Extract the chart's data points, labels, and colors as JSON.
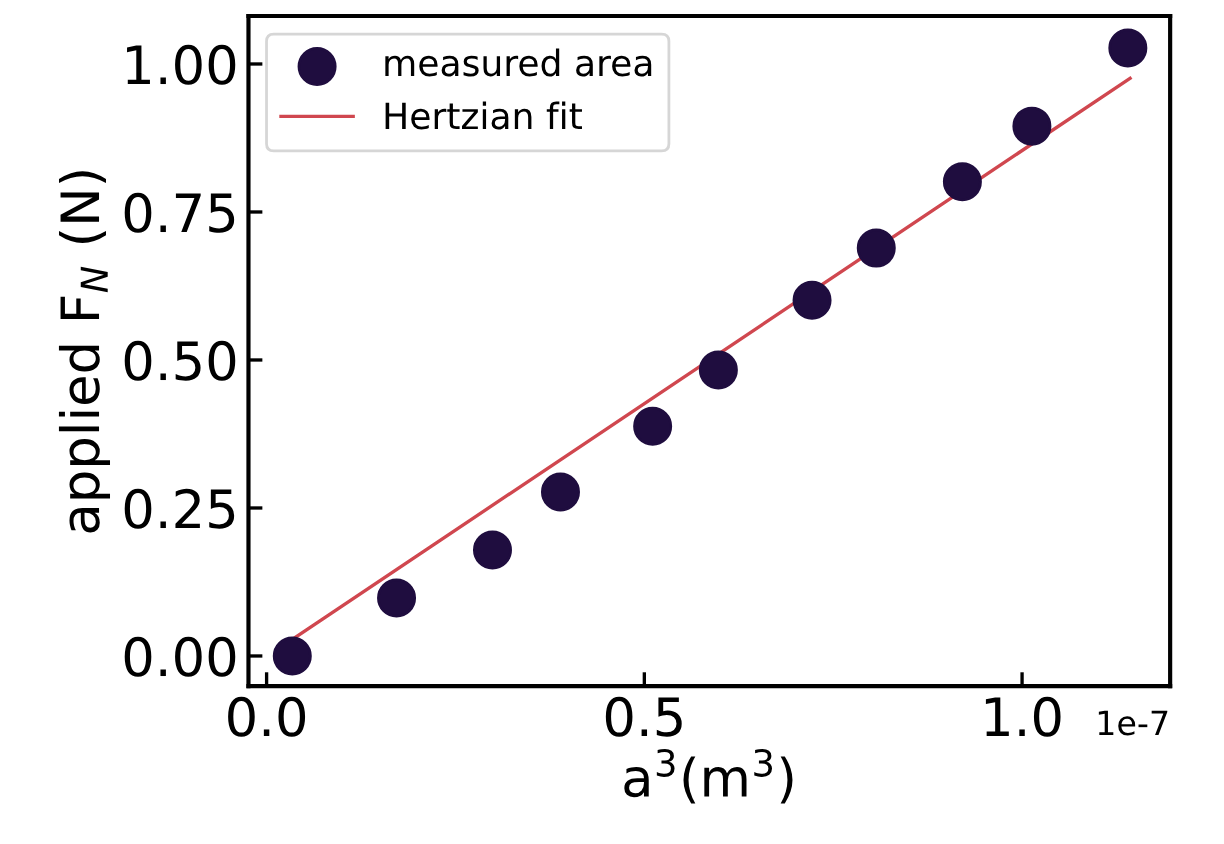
{
  "chart_data": {
    "type": "scatter",
    "xlabel": "a$^{3}$(m$^{3}$)",
    "ylabel": "applied F$_{N}$ (N)",
    "annotations": [
      "1e-7"
    ],
    "series": [
      {
        "name": "measured area",
        "color": "#1f0d3f",
        "marker": "circle",
        "x": [
          0.034,
          0.172,
          0.299,
          0.389,
          0.511,
          0.598,
          0.722,
          0.807,
          0.921,
          1.013,
          1.14
        ],
        "values": [
          0.0,
          0.098,
          0.179,
          0.277,
          0.388,
          0.483,
          0.601,
          0.689,
          0.801,
          0.895,
          1.027
        ]
      },
      {
        "name": "Hertzian fit",
        "type": "line",
        "color": "#d0474f",
        "x": [
          0.034,
          1.143
        ],
        "values": [
          0.028,
          0.976
        ]
      }
    ],
    "xlim": [
      -0.024,
      1.196
    ],
    "ylim": [
      -0.051,
      1.081
    ],
    "xticks": [
      {
        "value": 0.0,
        "label": "0.0"
      },
      {
        "value": 0.5,
        "label": "0.5"
      },
      {
        "value": 1.0,
        "label": "1.0"
      }
    ],
    "yticks": [
      {
        "value": 0.0,
        "label": "0.00"
      },
      {
        "value": 0.25,
        "label": "0.25"
      },
      {
        "value": 0.5,
        "label": "0.50"
      },
      {
        "value": 0.75,
        "label": "0.75"
      },
      {
        "value": 1.0,
        "label": "1.00"
      }
    ],
    "legend": "top left",
    "grid": false
  }
}
